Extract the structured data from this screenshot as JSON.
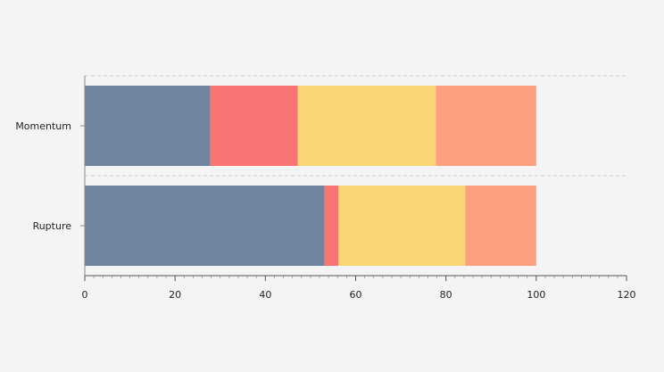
{
  "chart_data": {
    "type": "bar",
    "orientation": "horizontal",
    "stacked": true,
    "categories": [
      "Momentum",
      "Rupture"
    ],
    "series": [
      {
        "color": "#6f849e",
        "values": [
          27.8,
          53.1
        ]
      },
      {
        "color": "#f97575",
        "values": [
          19.4,
          3.1
        ]
      },
      {
        "color": "#fad674",
        "values": [
          30.6,
          28.1
        ]
      },
      {
        "color": "#fca081",
        "values": [
          22.2,
          15.7
        ]
      }
    ],
    "x_ticks": [
      "0",
      "20",
      "40",
      "60",
      "80",
      "100",
      "120"
    ],
    "xlim": [
      0,
      120
    ],
    "grid": "horizontal dashed separators",
    "legend": "none",
    "background": "#f4f4f4",
    "axis_color": "#8a8a8a",
    "grid_color": "#cfcfcf"
  }
}
